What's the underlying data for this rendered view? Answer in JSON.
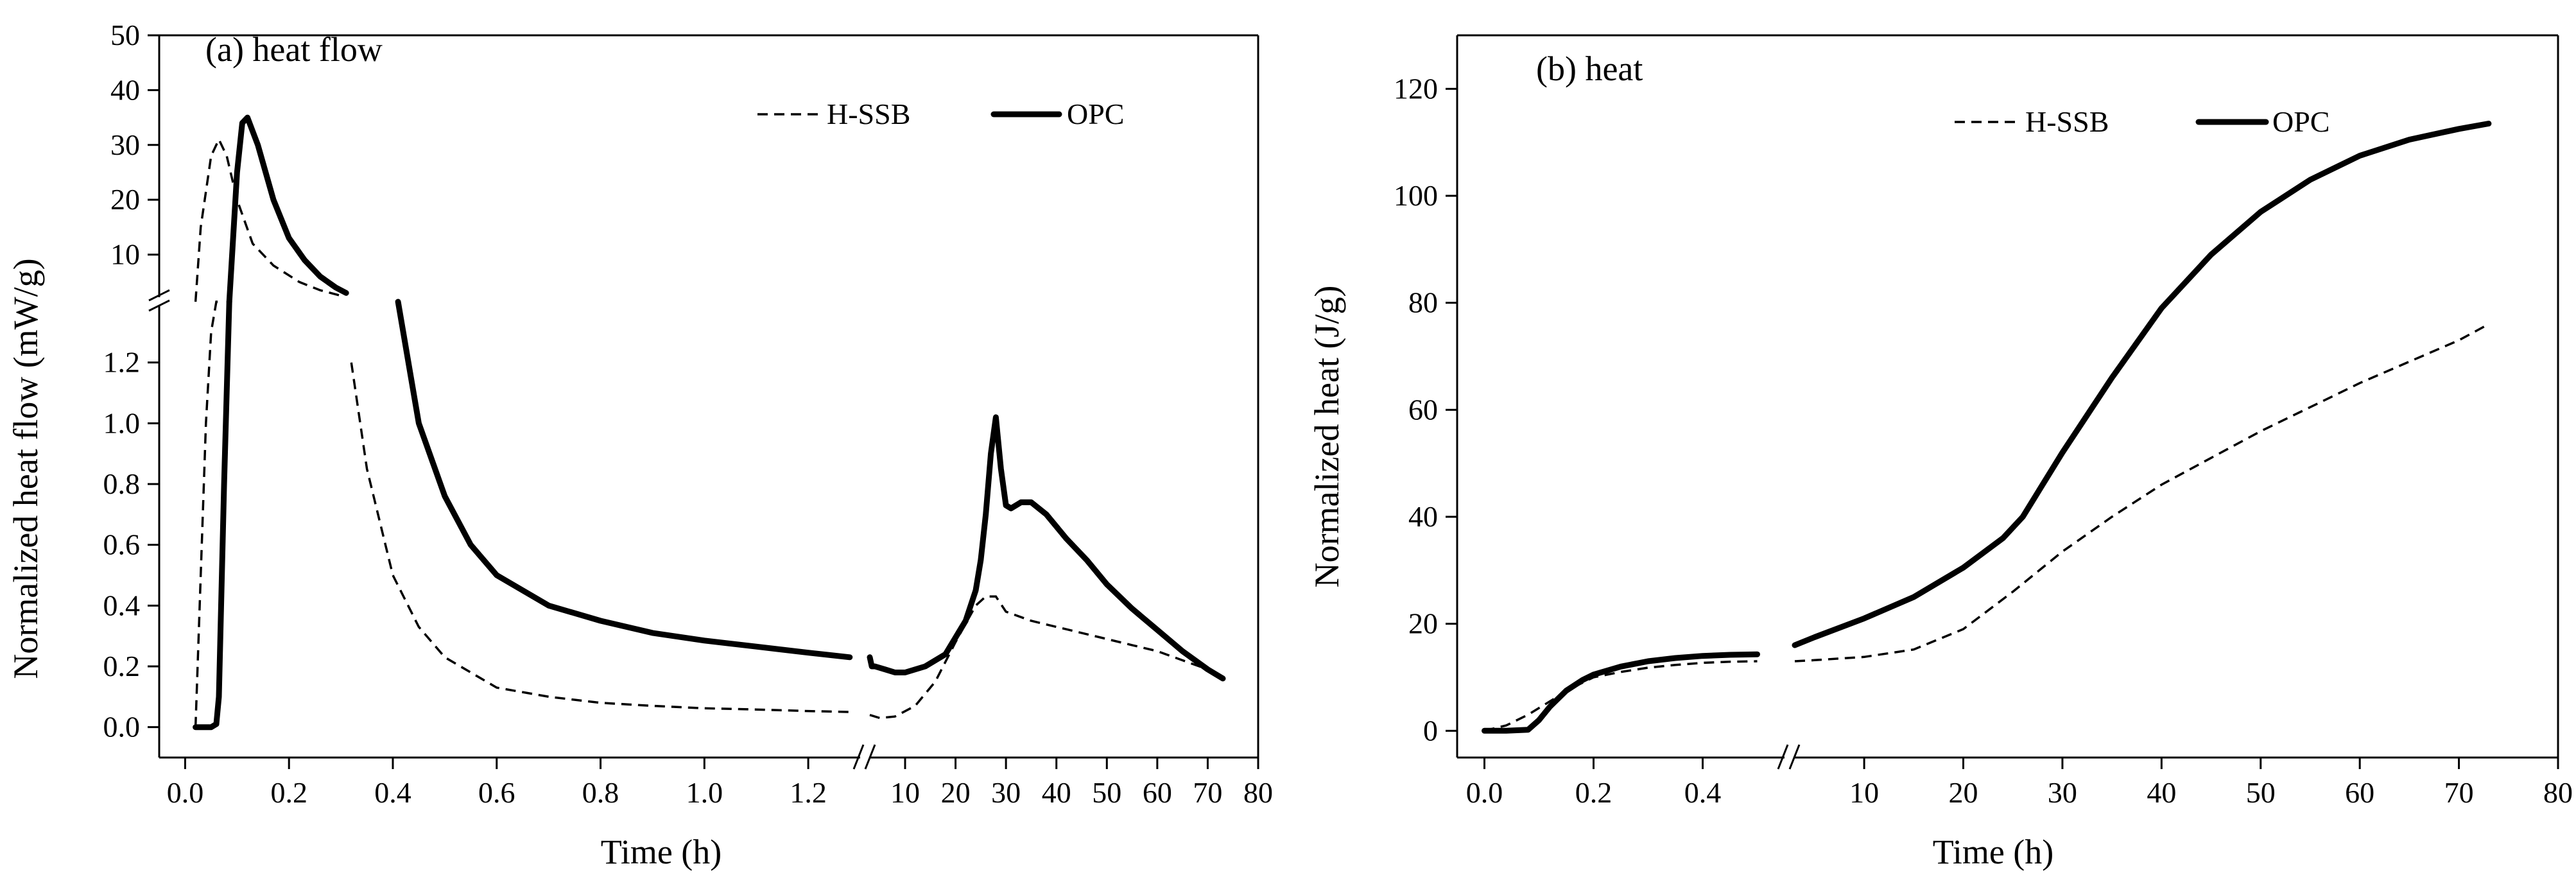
{
  "chart_data": [
    {
      "panel": "a",
      "type": "line",
      "title": "(a) heat flow",
      "xlabel": "Time (h)",
      "ylabel": "Normalized heat flow (mW/g)",
      "x_segments": [
        {
          "xlim": [
            -0.05,
            1.3
          ],
          "ticks": [
            0.0,
            0.2,
            0.4,
            0.6,
            0.8,
            1.0,
            1.2
          ],
          "tick_labels": [
            "0.0",
            "0.2",
            "0.4",
            "0.6",
            "0.8",
            "1.0",
            "1.2"
          ]
        },
        {
          "xlim": [
            3,
            80
          ],
          "ticks": [
            10,
            20,
            30,
            40,
            50,
            60,
            70,
            80
          ],
          "tick_labels": [
            "10",
            "20",
            "30",
            "40",
            "50",
            "60",
            "70",
            "80"
          ]
        }
      ],
      "y_segments": [
        {
          "ylim": [
            -0.1,
            1.4
          ],
          "ticks": [
            0.0,
            0.2,
            0.4,
            0.6,
            0.8,
            1.0,
            1.2
          ],
          "tick_labels": [
            "0.0",
            "0.2",
            "0.4",
            "0.6",
            "0.8",
            "1.0",
            "1.2"
          ]
        },
        {
          "ylim": [
            1.4,
            50
          ],
          "ticks": [
            10,
            20,
            30,
            40,
            50
          ],
          "tick_labels": [
            "10",
            "20",
            "30",
            "40",
            "50"
          ]
        }
      ],
      "legend": {
        "position": "top-right",
        "entries": [
          "H-SSB",
          "OPC"
        ]
      },
      "series": [
        {
          "name": "H-SSB",
          "style": "dashed",
          "segments": [
            {
              "x": [
                0.02,
                0.03,
                0.04,
                0.05,
                0.06,
                0.065
              ],
              "y": [
                0.0,
                0.5,
                1.0,
                1.3,
                1.4,
                1.4
              ]
            },
            {
              "x": [
                0.02,
                0.03,
                0.05,
                0.065,
                0.08,
                0.1,
                0.13,
                0.17,
                0.22,
                0.26,
                0.3
              ],
              "y": [
                1.4,
                15,
                28,
                31,
                28,
                20,
                12,
                8,
                5,
                3.5,
                2.5
              ]
            },
            {
              "x": [
                0.32,
                0.35,
                0.4,
                0.45,
                0.5,
                0.6,
                0.7,
                0.8,
                0.9,
                1.0,
                1.1,
                1.2,
                1.28
              ],
              "y": [
                1.2,
                0.85,
                0.5,
                0.33,
                0.23,
                0.13,
                0.1,
                0.08,
                0.07,
                0.062,
                0.058,
                0.053,
                0.05
              ]
            },
            {
              "x": [
                3,
                5,
                8,
                12,
                16,
                20,
                24,
                26,
                28,
                30,
                35,
                40,
                45,
                50,
                55,
                60,
                65,
                70,
                73
              ],
              "y": [
                0.04,
                0.03,
                0.035,
                0.07,
                0.15,
                0.28,
                0.4,
                0.43,
                0.43,
                0.38,
                0.35,
                0.33,
                0.31,
                0.29,
                0.27,
                0.25,
                0.22,
                0.19,
                0.16
              ]
            }
          ]
        },
        {
          "name": "OPC",
          "style": "solid",
          "segments": [
            {
              "x": [
                0.02,
                0.03,
                0.05,
                0.06,
                0.065,
                0.075,
                0.085
              ],
              "y": [
                0.0,
                0.0,
                0.0,
                0.01,
                0.1,
                0.8,
                1.4
              ]
            },
            {
              "x": [
                0.085,
                0.1,
                0.11,
                0.12,
                0.14,
                0.17,
                0.2,
                0.23,
                0.26,
                0.29,
                0.31
              ],
              "y": [
                1.4,
                25,
                34,
                35,
                30,
                20,
                13,
                9,
                6,
                4,
                3
              ]
            },
            {
              "x": [
                0.41,
                0.45,
                0.5,
                0.55,
                0.6,
                0.7,
                0.8,
                0.9,
                1.0,
                1.1,
                1.2,
                1.28
              ],
              "y": [
                1.4,
                1.0,
                0.76,
                0.6,
                0.5,
                0.4,
                0.35,
                0.31,
                0.285,
                0.265,
                0.245,
                0.23
              ]
            },
            {
              "x": [
                3,
                3.4,
                4,
                6,
                8,
                10,
                14,
                18,
                22,
                24,
                25,
                26,
                27,
                28,
                29,
                30,
                31,
                33,
                35,
                38,
                42,
                46,
                50,
                55,
                60,
                65,
                70,
                73
              ],
              "y": [
                0.23,
                0.2,
                0.2,
                0.19,
                0.18,
                0.18,
                0.2,
                0.24,
                0.35,
                0.45,
                0.55,
                0.7,
                0.9,
                1.02,
                0.85,
                0.73,
                0.72,
                0.74,
                0.74,
                0.7,
                0.62,
                0.55,
                0.47,
                0.39,
                0.32,
                0.25,
                0.19,
                0.16
              ]
            }
          ]
        }
      ]
    },
    {
      "panel": "b",
      "type": "line",
      "title": "(b) heat",
      "xlabel": "Time (h)",
      "ylabel": "Normalized heat (J/g)",
      "x_segments": [
        {
          "xlim": [
            -0.05,
            0.55
          ],
          "ticks": [
            0.0,
            0.2,
            0.4
          ],
          "tick_labels": [
            "0.0",
            "0.2",
            "0.4"
          ]
        },
        {
          "xlim": [
            3,
            80
          ],
          "ticks": [
            10,
            20,
            30,
            40,
            50,
            60,
            70,
            80
          ],
          "tick_labels": [
            "10",
            "20",
            "30",
            "40",
            "50",
            "60",
            "70",
            "80"
          ]
        }
      ],
      "ylim": [
        -5,
        130
      ],
      "yticks": [
        0,
        20,
        40,
        60,
        80,
        100,
        120
      ],
      "ytick_labels": [
        "0",
        "20",
        "40",
        "60",
        "80",
        "100",
        "120"
      ],
      "legend": {
        "position": "top-right",
        "entries": [
          "H-SSB",
          "OPC"
        ]
      },
      "series": [
        {
          "name": "H-SSB",
          "style": "dashed",
          "segments": [
            {
              "x": [
                0.0,
                0.04,
                0.08,
                0.12,
                0.16,
                0.2,
                0.25,
                0.3,
                0.35,
                0.4,
                0.45,
                0.5
              ],
              "y": [
                0.0,
                1.0,
                3.0,
                5.5,
                8.0,
                10.0,
                11.0,
                11.8,
                12.3,
                12.7,
                12.9,
                13.0
              ]
            },
            {
              "x": [
                3,
                5,
                10,
                15,
                20,
                25,
                30,
                35,
                40,
                45,
                50,
                55,
                60,
                65,
                70,
                73
              ],
              "y": [
                13,
                13.2,
                13.8,
                15.2,
                19,
                26,
                33.5,
                40,
                46,
                51,
                56,
                60.5,
                65,
                69,
                73,
                76
              ]
            }
          ]
        },
        {
          "name": "OPC",
          "style": "solid",
          "segments": [
            {
              "x": [
                0.0,
                0.04,
                0.08,
                0.1,
                0.12,
                0.15,
                0.18,
                0.2,
                0.25,
                0.3,
                0.35,
                0.4,
                0.45,
                0.5
              ],
              "y": [
                0.0,
                0.0,
                0.2,
                2.0,
                4.5,
                7.5,
                9.5,
                10.5,
                12.0,
                13.0,
                13.6,
                14.0,
                14.2,
                14.3
              ]
            },
            {
              "x": [
                3,
                5,
                10,
                15,
                20,
                24,
                26,
                28,
                30,
                35,
                40,
                45,
                50,
                55,
                60,
                65,
                70,
                73
              ],
              "y": [
                16,
                17.5,
                21,
                25,
                30.5,
                36,
                40,
                46,
                52,
                66,
                79,
                89,
                97,
                103,
                107.5,
                110.5,
                112.5,
                113.5
              ]
            }
          ]
        }
      ]
    }
  ]
}
